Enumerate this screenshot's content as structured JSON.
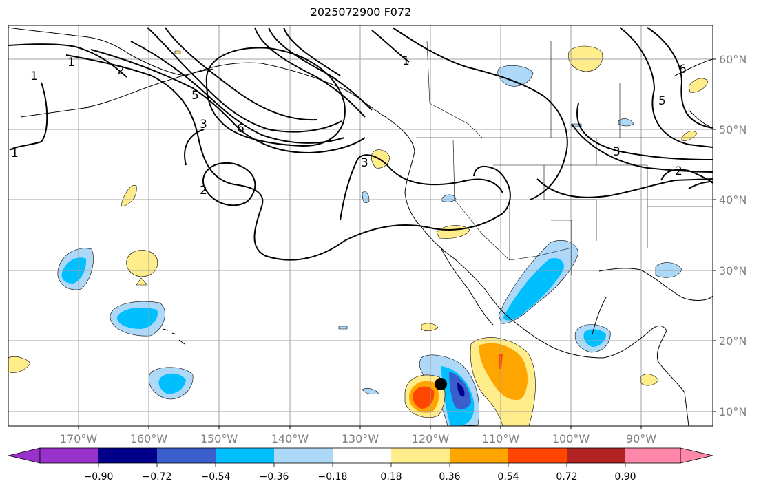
{
  "title": "2025072900 F072",
  "colors": {
    "neg_090": "#9932cc",
    "neg_072": "#00008b",
    "neg_054": "#3a5fcd",
    "neg_036": "#00bfff",
    "neg_018": "#add8f8",
    "zero": "#ffffff",
    "pos_018": "#ffec8b",
    "pos_036": "#ffa500",
    "pos_054": "#ff4500",
    "pos_072": "#b22222",
    "pos_090": "#ff88aa",
    "grid": "#a0a0a0",
    "coast": "#000000",
    "contour": "#000000"
  },
  "lat_labels": [
    "60°N",
    "50°N",
    "40°N",
    "30°N",
    "20°N",
    "10°N"
  ],
  "lon_labels": [
    "170°W",
    "160°W",
    "150°W",
    "140°W",
    "130°W",
    "120°W",
    "110°W",
    "100°W",
    "90°W"
  ],
  "colorbar": {
    "ticks": [
      "−0.90",
      "−0.72",
      "−0.54",
      "−0.36",
      "−0.18",
      "0.18",
      "0.36",
      "0.54",
      "0.72",
      "0.90"
    ]
  },
  "contour_labels": [
    "1",
    "1",
    "2",
    "5",
    "3",
    "6",
    "1",
    "2",
    "3",
    "1",
    "6",
    "5",
    "3",
    "2"
  ],
  "marker": "storm-center-dot"
}
